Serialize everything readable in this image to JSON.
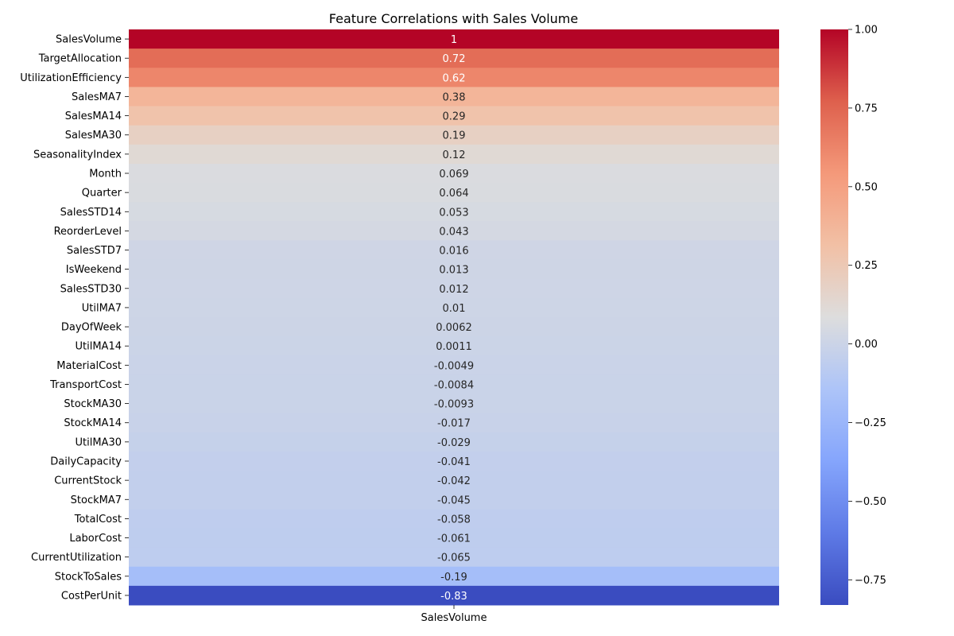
{
  "chart_data": {
    "type": "heatmap",
    "title": "Feature Correlations with Sales Volume",
    "columns": [
      "SalesVolume"
    ],
    "rows": [
      {
        "feature": "SalesVolume",
        "value": 1.0,
        "label": "1"
      },
      {
        "feature": "TargetAllocation",
        "value": 0.72,
        "label": "0.72"
      },
      {
        "feature": "UtilizationEfficiency",
        "value": 0.62,
        "label": "0.62"
      },
      {
        "feature": "SalesMA7",
        "value": 0.38,
        "label": "0.38"
      },
      {
        "feature": "SalesMA14",
        "value": 0.29,
        "label": "0.29"
      },
      {
        "feature": "SalesMA30",
        "value": 0.19,
        "label": "0.19"
      },
      {
        "feature": "SeasonalityIndex",
        "value": 0.12,
        "label": "0.12"
      },
      {
        "feature": "Month",
        "value": 0.069,
        "label": "0.069"
      },
      {
        "feature": "Quarter",
        "value": 0.064,
        "label": "0.064"
      },
      {
        "feature": "SalesSTD14",
        "value": 0.053,
        "label": "0.053"
      },
      {
        "feature": "ReorderLevel",
        "value": 0.043,
        "label": "0.043"
      },
      {
        "feature": "SalesSTD7",
        "value": 0.016,
        "label": "0.016"
      },
      {
        "feature": "IsWeekend",
        "value": 0.013,
        "label": "0.013"
      },
      {
        "feature": "SalesSTD30",
        "value": 0.012,
        "label": "0.012"
      },
      {
        "feature": "UtilMA7",
        "value": 0.01,
        "label": "0.01"
      },
      {
        "feature": "DayOfWeek",
        "value": 0.0062,
        "label": "0.0062"
      },
      {
        "feature": "UtilMA14",
        "value": 0.0011,
        "label": "0.0011"
      },
      {
        "feature": "MaterialCost",
        "value": -0.0049,
        "label": "-0.0049"
      },
      {
        "feature": "TransportCost",
        "value": -0.0084,
        "label": "-0.0084"
      },
      {
        "feature": "StockMA30",
        "value": -0.0093,
        "label": "-0.0093"
      },
      {
        "feature": "StockMA14",
        "value": -0.017,
        "label": "-0.017"
      },
      {
        "feature": "UtilMA30",
        "value": -0.029,
        "label": "-0.029"
      },
      {
        "feature": "DailyCapacity",
        "value": -0.041,
        "label": "-0.041"
      },
      {
        "feature": "CurrentStock",
        "value": -0.042,
        "label": "-0.042"
      },
      {
        "feature": "StockMA7",
        "value": -0.045,
        "label": "-0.045"
      },
      {
        "feature": "TotalCost",
        "value": -0.058,
        "label": "-0.058"
      },
      {
        "feature": "LaborCost",
        "value": -0.061,
        "label": "-0.061"
      },
      {
        "feature": "CurrentUtilization",
        "value": -0.065,
        "label": "-0.065"
      },
      {
        "feature": "StockToSales",
        "value": -0.19,
        "label": "-0.19"
      },
      {
        "feature": "CostPerUnit",
        "value": -0.83,
        "label": "-0.83"
      }
    ],
    "colormap": "coolwarm",
    "vmin": -0.83,
    "vmax": 1.0,
    "colorbar": {
      "ticks": [
        1.0,
        0.75,
        0.5,
        0.25,
        0.0,
        -0.25,
        -0.5,
        -0.75
      ],
      "tick_labels": [
        "1.00",
        "0.75",
        "0.50",
        "0.25",
        "0.00",
        "−0.25",
        "−0.50",
        "−0.75"
      ],
      "placement": "right"
    },
    "annotations": true,
    "grid": false
  }
}
